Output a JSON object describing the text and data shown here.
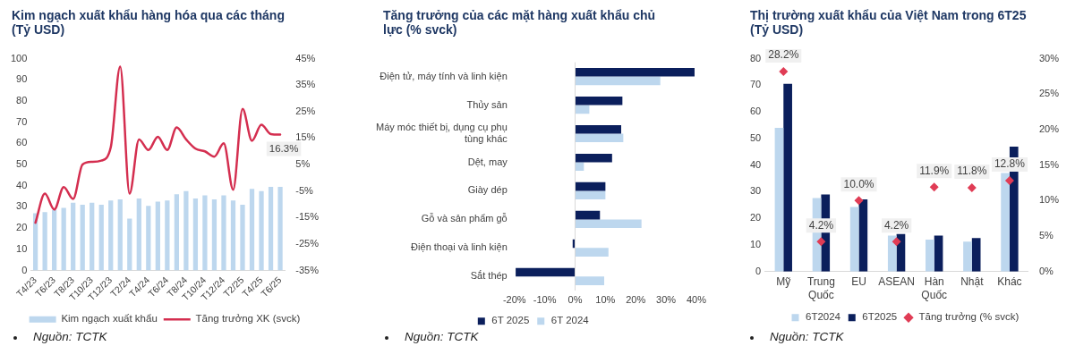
{
  "chart_data": [
    {
      "type": "bar",
      "title": "Kim ngạch xuất khẩu hàng hóa qua các tháng (Tỷ USD)",
      "categories": [
        "T4/23",
        null,
        "T6/23",
        null,
        "T8/23",
        null,
        "T10/23",
        null,
        "T12/23",
        null,
        "T2/24",
        null,
        "T4/24",
        null,
        "T6/24",
        null,
        "T8/24",
        null,
        "T10/24",
        null,
        "T12/24",
        null,
        "T2/25",
        null,
        "T4/25",
        null,
        "T6/25"
      ],
      "series": [
        {
          "name": "Kim ngạch xuất khẩu",
          "type": "bar",
          "color": "#bdd7ee",
          "values": [
            27,
            27.5,
            28.5,
            29.5,
            32,
            31,
            32,
            31,
            33,
            33.5,
            24.5,
            34,
            30.5,
            32.5,
            33,
            36,
            37.5,
            34,
            35.5,
            33.5,
            35.5,
            33,
            31,
            38.5,
            37.5,
            39.5,
            39.5
          ]
        },
        {
          "name": "Tăng trưởng XK (svck)",
          "type": "line",
          "axis": "y2",
          "color": "#d42e4f",
          "values": [
            -17,
            -6,
            -12,
            -3.5,
            -8,
            5,
            6,
            6.5,
            11.5,
            42,
            -6,
            14.5,
            10.5,
            15.5,
            10.5,
            19,
            14.5,
            11,
            10,
            8,
            13,
            -4.5,
            26,
            14,
            20,
            16.5,
            16.3
          ],
          "value_labels": [
            null,
            null,
            null,
            null,
            null,
            null,
            null,
            null,
            null,
            null,
            null,
            null,
            null,
            null,
            null,
            null,
            null,
            null,
            null,
            null,
            null,
            null,
            null,
            null,
            null,
            null,
            "16.3%"
          ]
        }
      ],
      "ylim": [
        0,
        100
      ],
      "yticks": [
        0,
        10,
        20,
        30,
        40,
        50,
        60,
        70,
        80,
        90,
        100
      ],
      "y2lim": [
        -35,
        45
      ],
      "y2ticks": [
        {
          "value": -35,
          "label": "-35%"
        },
        {
          "value": -25,
          "label": "-25%"
        },
        {
          "value": -15,
          "label": "-15%"
        },
        {
          "value": -5,
          "label": "-5%"
        },
        {
          "value": 5,
          "label": "5%"
        },
        {
          "value": 15,
          "label": "15%"
        },
        {
          "value": 25,
          "label": "25%"
        },
        {
          "value": 35,
          "label": "35%"
        },
        {
          "value": 45,
          "label": "45%"
        }
      ],
      "legend": "bottom",
      "marker": "none",
      "annotations": [
        "Nguồn: TCTK"
      ]
    },
    {
      "type": "bar",
      "orientation": "horizontal",
      "title": "Tăng trưởng của các mặt hàng xuất khẩu chủ lực (% svck)",
      "categories": [
        "Điện tử, máy tính và linh kiện",
        "Thủy sản",
        "Máy móc thiết bị, dụng cụ phụ tùng khác",
        "Dệt, may",
        "Giày dép",
        "Gỗ và sản phẩm gỗ",
        "Điện thoại và linh kiện",
        "Sắt thép"
      ],
      "series": [
        {
          "name": "6T 2025",
          "color": "#0b1f5c",
          "values": [
            39.4,
            15.6,
            15.2,
            12.2,
            10,
            8.2,
            -0.8,
            -19.6
          ]
        },
        {
          "name": "6T 2024",
          "color": "#bdd7ee",
          "values": [
            28.1,
            4.7,
            15.9,
            2.9,
            10,
            21.9,
            11,
            9.6
          ]
        }
      ],
      "xlim": [
        -20,
        40
      ],
      "xticks": [
        {
          "value": -20,
          "label": "-20%"
        },
        {
          "value": -10,
          "label": "-10%"
        },
        {
          "value": 0,
          "label": "0%"
        },
        {
          "value": 10,
          "label": "10%"
        },
        {
          "value": 20,
          "label": "20%"
        },
        {
          "value": 30,
          "label": "30%"
        },
        {
          "value": 40,
          "label": "40%"
        }
      ],
      "legend": "bottom",
      "annotations": [
        "Nguồn: TCTK"
      ]
    },
    {
      "type": "bar",
      "title": "Thị trường xuất khẩu của Việt Nam trong 6T25 (Tỷ USD)",
      "categories": [
        "Mỹ",
        "Trung Quốc",
        "EU",
        "ASEAN",
        "Hàn Quốc",
        "Nhật",
        "Khác"
      ],
      "series": [
        {
          "name": "6T2024",
          "color": "#bdd7ee",
          "values": [
            54,
            27.6,
            24.3,
            13.5,
            12,
            11.2,
            37
          ]
        },
        {
          "name": "6T2025",
          "color": "#0b1f5c",
          "values": [
            70.5,
            29,
            27.1,
            14.1,
            13.5,
            12.6,
            46.9
          ]
        },
        {
          "name": "Tăng trưởng (% svck)",
          "type": "scatter",
          "axis": "y2",
          "color": "#e03c55",
          "x": [
            "Mỹ",
            "Trung Quốc",
            "EU",
            "ASEAN",
            "Hàn Quốc",
            "Nhật",
            "Khác"
          ],
          "values": [
            28.2,
            4.2,
            10,
            4.2,
            11.9,
            11.8,
            12.8
          ],
          "value_labels": [
            "28.2%",
            "4.2%",
            "10.0%",
            "4.2%",
            "11.9%",
            "11.8%",
            "12.8%"
          ]
        }
      ],
      "ylim": [
        0,
        80
      ],
      "yticks": [
        0,
        10,
        20,
        30,
        40,
        50,
        60,
        70,
        80
      ],
      "y2lim": [
        0,
        30
      ],
      "y2ticks": [
        {
          "value": 0,
          "label": "0%"
        },
        {
          "value": 5,
          "label": "5%"
        },
        {
          "value": 10,
          "label": "10%"
        },
        {
          "value": 15,
          "label": "15%"
        },
        {
          "value": 20,
          "label": "20%"
        },
        {
          "value": 25,
          "label": "25%"
        },
        {
          "value": 30,
          "label": "30%"
        }
      ],
      "legend": "bottom",
      "marker": "diamond",
      "annotations": [
        "Nguồn: TCTK"
      ]
    }
  ]
}
